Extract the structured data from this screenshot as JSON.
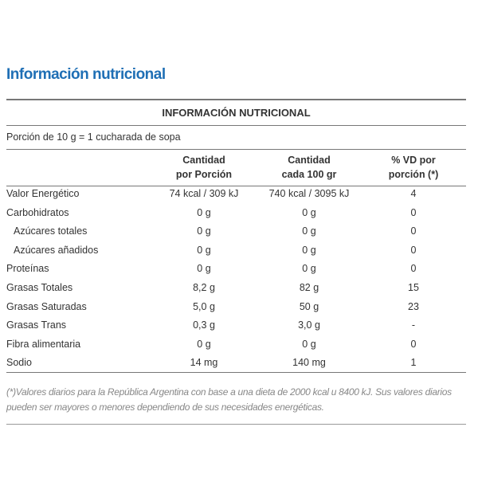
{
  "header": {
    "title": "Información nutricional"
  },
  "table": {
    "title": "INFORMACIÓN NUTRICIONAL",
    "portion": "Porción de 10 g = 1 cucharada de sopa",
    "columns": [
      [
        "Cantidad",
        "por Porción"
      ],
      [
        "Cantidad",
        "cada 100 gr"
      ],
      [
        "% VD por",
        "porción (*)"
      ]
    ],
    "rows": [
      [
        "Valor Energético",
        "74 kcal / 309 kJ",
        "740 kcal / 3095 kJ",
        "4"
      ],
      [
        "Carbohidratos",
        "0 g",
        "0 g",
        "0"
      ],
      [
        "Azúcares totales",
        "0 g",
        "0 g",
        "0"
      ],
      [
        "Azúcares añadidos",
        "0 g",
        "0 g",
        "0"
      ],
      [
        "Proteínas",
        "0 g",
        "0 g",
        "0"
      ],
      [
        "Grasas Totales",
        "8,2 g",
        "82 g",
        "15"
      ],
      [
        "Grasas Saturadas",
        "5,0 g",
        "50 g",
        "23"
      ],
      [
        "Grasas Trans",
        "0,3 g",
        "3,0 g",
        "-"
      ],
      [
        "Fibra alimentaria",
        "0 g",
        "0 g",
        "0"
      ],
      [
        "Sodio",
        "14 mg",
        "140 mg",
        "1"
      ]
    ],
    "footnote": "(*)Valores diarios para la República Argentina con base a una dieta de 2000 kcal u 8400 kJ. Sus valores diarios pueden ser mayores o menores dependiendo de sus necesidades energéticas."
  }
}
